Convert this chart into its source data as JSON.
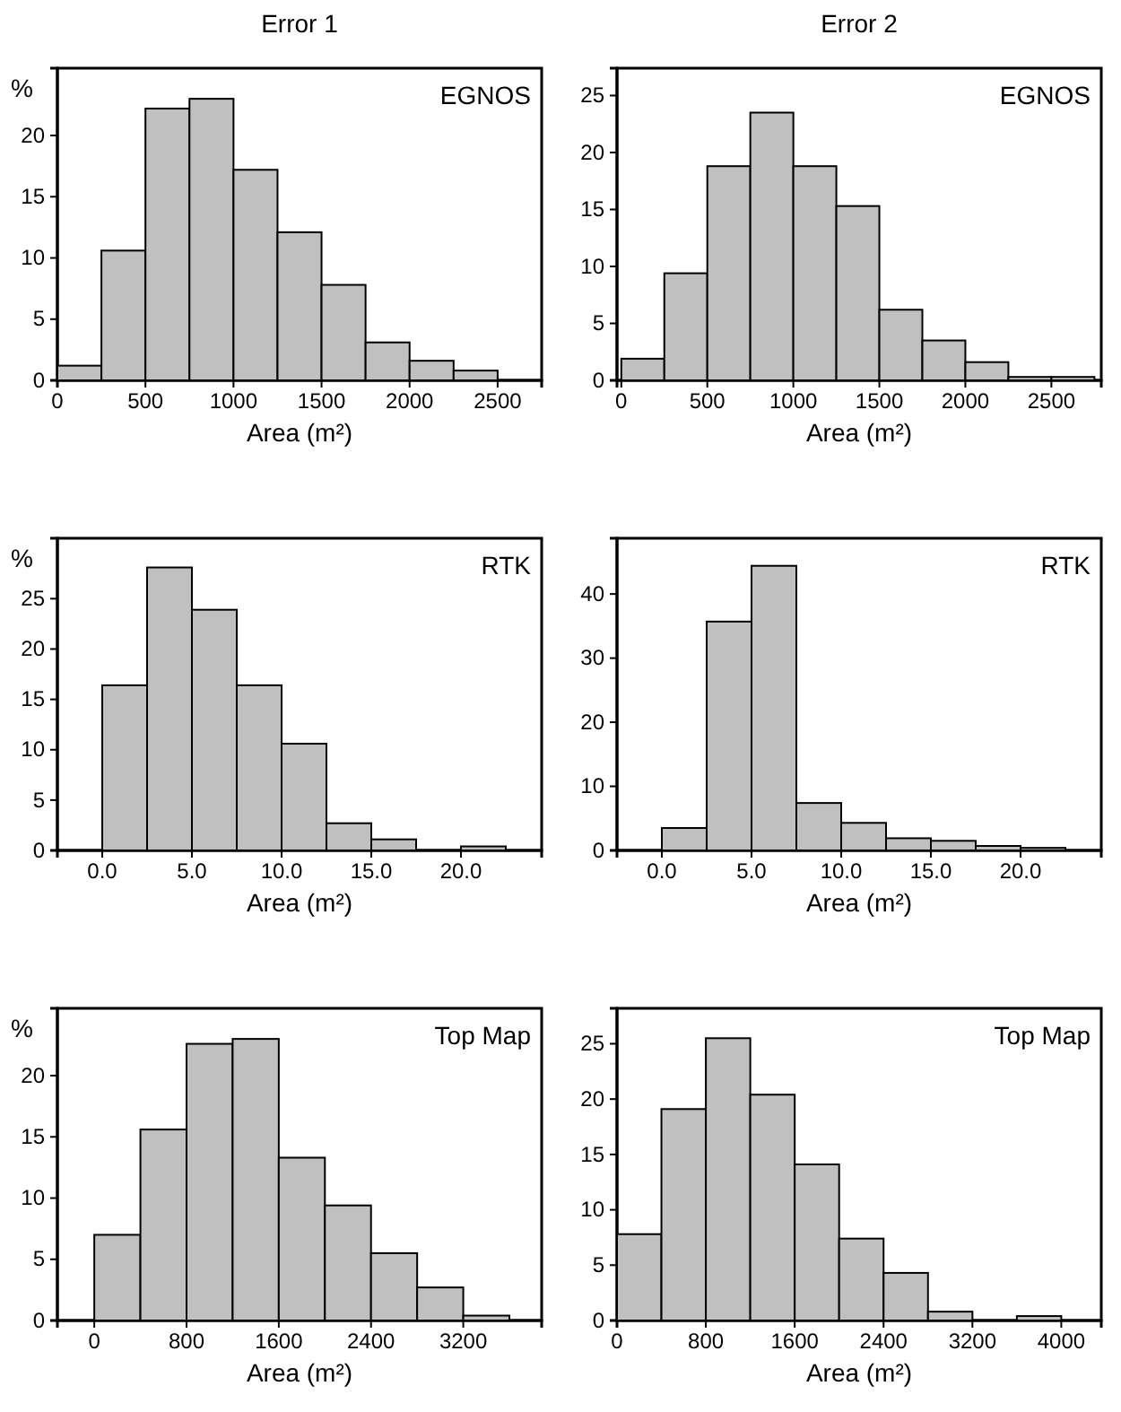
{
  "chart_data": [
    {
      "type": "histogram",
      "title": "Error 1",
      "subtitle": "EGNOS",
      "ylabel": "%",
      "xlabel": "Area (m²)",
      "color": "#c0c0c0",
      "bins": [
        0,
        250,
        500,
        750,
        1000,
        1250,
        1500,
        1750,
        2000,
        2250,
        2500
      ],
      "values": [
        1.2,
        10.6,
        22.2,
        23.0,
        17.2,
        12.1,
        7.8,
        3.1,
        1.6,
        0.8
      ],
      "xlim": [
        0,
        2750
      ],
      "xticks": [
        0,
        500,
        1000,
        1500,
        2000,
        2500
      ],
      "ylim": [
        0,
        25.5
      ],
      "yticks": [
        0,
        5,
        10,
        15,
        20
      ]
    },
    {
      "type": "histogram",
      "title": "Error 2",
      "subtitle": "EGNOS",
      "xlabel": "Area (m²)",
      "color": "#c0c0c0",
      "bins": [
        0,
        250,
        500,
        750,
        1000,
        1250,
        1500,
        1750,
        2000,
        2250,
        2500,
        2750
      ],
      "values": [
        1.9,
        9.4,
        18.8,
        23.5,
        18.8,
        15.3,
        6.2,
        3.5,
        1.6,
        0.3,
        0.3
      ],
      "xlim": [
        -25,
        2790
      ],
      "xticks": [
        0,
        500,
        1000,
        1500,
        2000,
        2500
      ],
      "ylim": [
        0,
        27.4
      ],
      "yticks": [
        0,
        5,
        10,
        15,
        20,
        25
      ]
    },
    {
      "type": "histogram",
      "subtitle": "RTK",
      "ylabel": "%",
      "xlabel": "Area (m²)",
      "color": "#c0c0c0",
      "bins": [
        0,
        2.5,
        5,
        7.5,
        10,
        12.5,
        15,
        17.5,
        20,
        22.5
      ],
      "values": [
        16.4,
        28.1,
        23.9,
        16.4,
        10.6,
        2.7,
        1.1,
        0,
        0.4
      ],
      "xlim": [
        -2.5,
        24.5
      ],
      "xticks": [
        {
          "value": 0,
          "label": "0.0"
        },
        {
          "value": 5,
          "label": "5.0"
        },
        {
          "value": 10,
          "label": "10.0"
        },
        {
          "value": 15,
          "label": "15.0"
        },
        {
          "value": 20,
          "label": "20.0"
        }
      ],
      "ylim": [
        0,
        31
      ],
      "yticks": [
        0,
        5,
        10,
        15,
        20,
        25
      ]
    },
    {
      "type": "histogram",
      "subtitle": "RTK",
      "xlabel": "Area (m²)",
      "color": "#c0c0c0",
      "bins": [
        0,
        2.5,
        5,
        7.5,
        10,
        12.5,
        15,
        17.5,
        20,
        22.5
      ],
      "values": [
        3.5,
        35.7,
        44.4,
        7.4,
        4.3,
        1.9,
        1.5,
        0.7,
        0.4
      ],
      "xlim": [
        -2.5,
        24.5
      ],
      "xticks": [
        {
          "value": 0,
          "label": "0.0"
        },
        {
          "value": 5,
          "label": "5.0"
        },
        {
          "value": 10,
          "label": "10.0"
        },
        {
          "value": 15,
          "label": "15.0"
        },
        {
          "value": 20,
          "label": "20.0"
        }
      ],
      "ylim": [
        0,
        48.7
      ],
      "yticks": [
        0,
        10,
        20,
        30,
        40
      ]
    },
    {
      "type": "histogram",
      "subtitle": "Top Map",
      "ylabel": "%",
      "xlabel": "Area (m²)",
      "color": "#c0c0c0",
      "bins": [
        0,
        400,
        800,
        1200,
        1600,
        2000,
        2400,
        2800,
        3200,
        3600
      ],
      "values": [
        7.0,
        15.6,
        22.6,
        23.0,
        13.3,
        9.4,
        5.5,
        2.7,
        0.4
      ],
      "xlim": [
        -320,
        3880
      ],
      "xticks": [
        0,
        800,
        1600,
        2400,
        3200
      ],
      "ylim": [
        0,
        25.5
      ],
      "yticks": [
        0,
        5,
        10,
        15,
        20
      ]
    },
    {
      "type": "histogram",
      "subtitle": "Top Map",
      "xlabel": "Area (m²)",
      "color": "#c0c0c0",
      "bins": [
        0,
        400,
        800,
        1200,
        1600,
        2000,
        2400,
        2800,
        3200,
        3600,
        4000
      ],
      "values": [
        7.8,
        19.1,
        25.5,
        20.4,
        14.1,
        7.4,
        4.3,
        0.8,
        0,
        0.4
      ],
      "xlim": [
        0,
        4360
      ],
      "xticks": [
        0,
        800,
        1600,
        2400,
        3200,
        4000
      ],
      "ylim": [
        0,
        28.2
      ],
      "yticks": [
        0,
        5,
        10,
        15,
        20,
        25
      ]
    }
  ]
}
